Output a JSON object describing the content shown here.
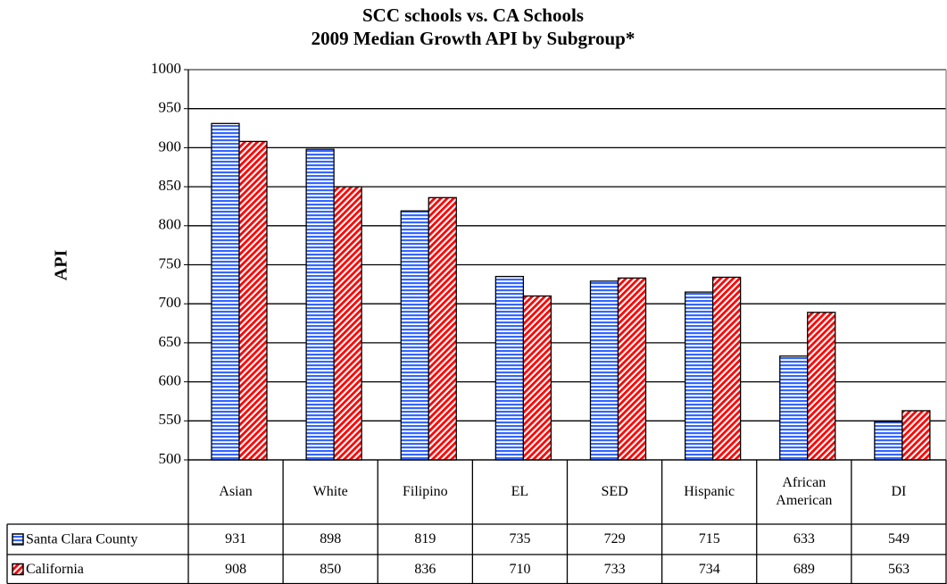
{
  "chart_data": {
    "type": "bar",
    "title": "SCC schools vs. CA  Schools",
    "subtitle": "2009 Median Growth API by Subgroup*",
    "y_label": "API",
    "categories": [
      "Asian",
      "White",
      "Filipino",
      "EL",
      "SED",
      "Hispanic",
      "African American",
      "DI"
    ],
    "series": [
      {
        "name": "Santa Clara County",
        "color": "#3366ff",
        "values": [
          931,
          898,
          819,
          735,
          729,
          715,
          633,
          549
        ]
      },
      {
        "name": "California",
        "color": "#ff0000",
        "values": [
          908,
          850,
          836,
          710,
          733,
          734,
          689,
          563
        ]
      }
    ],
    "ylim": [
      500,
      1000
    ],
    "yticks": [
      500,
      550,
      600,
      650,
      700,
      750,
      800,
      850,
      900,
      950,
      1000
    ],
    "grid": true,
    "data_table": true
  }
}
